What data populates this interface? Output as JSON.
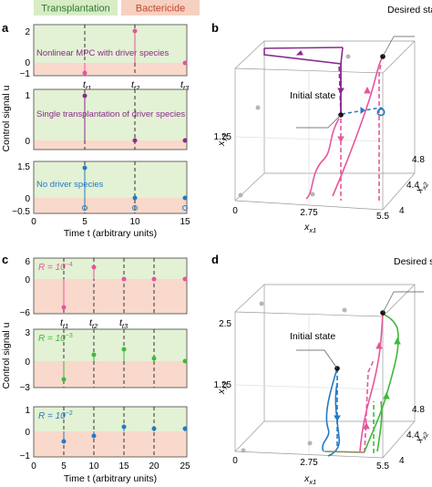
{
  "legend": {
    "transplantation": "Transplantation",
    "bactericide": "Bactericide",
    "transplantation_color": "#d8ecc6",
    "bactericide_color": "#f6d1c1"
  },
  "colors": {
    "bg_green": "#e3f1d4",
    "bg_red": "#f8d9cb",
    "purple": "#8b2a8e",
    "pink": "#e8559d",
    "blue": "#2479c3",
    "green": "#3fb93b",
    "grey_point": "#b5b5b5"
  },
  "panel_a": {
    "label": "a",
    "ylabel": "Control signal u",
    "xlabel": "Time t (arbitrary units)",
    "xticks": [
      "0",
      "5",
      "10",
      "15"
    ],
    "time_labels": [
      "t1",
      "t2",
      "t3"
    ],
    "subplots": [
      {
        "title": "Nonlinear MPC with driver species",
        "yticks": [
          "2",
          "0",
          "−1"
        ],
        "title_color": "#8b2a8e"
      },
      {
        "title": "Single transplantation of driver species",
        "yticks": [
          "1",
          "0"
        ],
        "title_color": "#8b2a8e"
      },
      {
        "title": "No driver species",
        "yticks": [
          "1.5",
          "0",
          "−0.5"
        ],
        "title_color": "#2479c3"
      }
    ]
  },
  "panel_b": {
    "label": "b",
    "desired_state": "Desired state",
    "initial_state": "Initial state",
    "x1_label": "x1",
    "x2_label": "x2",
    "x3_label": "x3",
    "x1_ticks": [
      "0",
      "2.75",
      "5.5"
    ],
    "x2_ticks": [
      "4",
      "4.4",
      "4.8"
    ],
    "x3_ticks": [
      "1.25"
    ]
  },
  "panel_c": {
    "label": "c",
    "ylabel": "Control signal u",
    "xlabel": "Time t (arbitrary units)",
    "xticks": [
      "0",
      "5",
      "10",
      "15",
      "20",
      "25"
    ],
    "time_labels": [
      "t1",
      "t2",
      "t3"
    ],
    "subplots": [
      {
        "title": "R = 10",
        "exponent": "−4",
        "yticks": [
          "6",
          "0",
          "−6"
        ],
        "title_color": "#e8559d"
      },
      {
        "title": "R = 10",
        "exponent": "−3",
        "yticks": [
          "3",
          "0",
          "−3"
        ],
        "title_color": "#3fb93b"
      },
      {
        "title": "R = 10",
        "exponent": "−2",
        "yticks": [
          "1",
          "0",
          "−1"
        ],
        "title_color": "#2479c3"
      }
    ]
  },
  "panel_d": {
    "label": "d",
    "desired_state": "Desired state",
    "initial_state": "Initial state",
    "x1_label": "x1",
    "x2_label": "x2",
    "x3_label": "x3",
    "x1_ticks": [
      "0",
      "2.75",
      "5.5"
    ],
    "x2_ticks": [
      "4",
      "4.4",
      "4.8"
    ],
    "x3_ticks": [
      "2.5",
      "1.25"
    ]
  }
}
